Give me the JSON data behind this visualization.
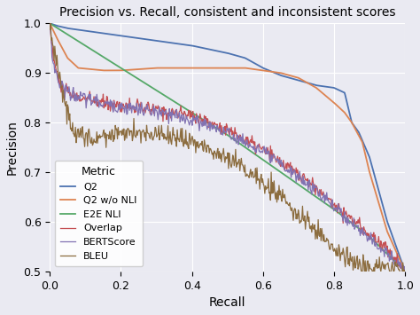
{
  "title": "Precision vs. Recall, consistent and inconsistent scores",
  "xlabel": "Recall",
  "ylabel": "Precision",
  "xlim": [
    0.0,
    1.0
  ],
  "ylim": [
    0.5,
    1.0
  ],
  "lines": {
    "Q2": {
      "color": "#4c72b0"
    },
    "Q2 w/o NLI": {
      "color": "#dd8452"
    },
    "E2E NLI": {
      "color": "#55a868"
    },
    "Overlap": {
      "color": "#c44e52"
    },
    "BERTScore": {
      "color": "#8172b2"
    },
    "BLEU": {
      "color": "#8c6d3f"
    }
  },
  "legend_title": "Metric",
  "legend_loc": "lower left",
  "title_fontsize": 10,
  "label_fontsize": 10,
  "tick_fontsize": 9,
  "figsize": [
    4.74,
    3.55
  ],
  "dpi": 100
}
